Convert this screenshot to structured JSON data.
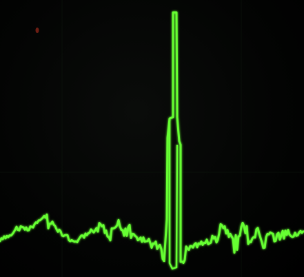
{
  "display": {
    "background_color": "#000000",
    "trace_color": "#66ff33",
    "speck_color": "#a0281e"
  },
  "trace": {
    "description_visible": false
  }
}
